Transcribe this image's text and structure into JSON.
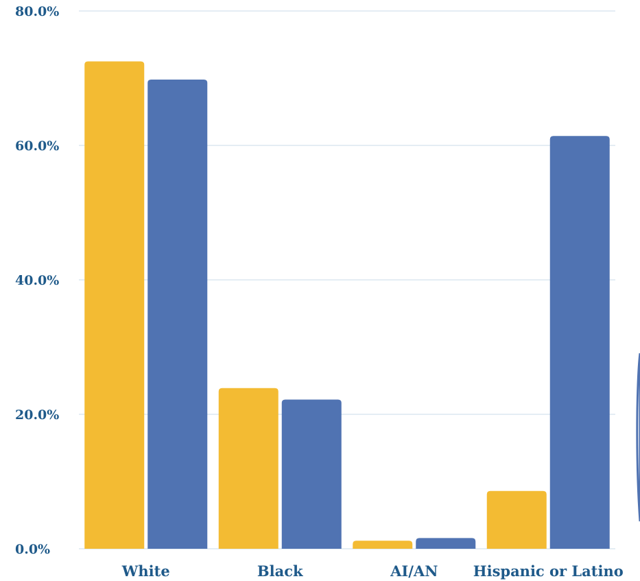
{
  "chart_data": {
    "type": "bar",
    "categories": [
      "White",
      "Black",
      "AI/AN",
      "Hispanic or Latino"
    ],
    "series": [
      {
        "color": "#f3bb33",
        "values": [
          72.5,
          23.9,
          1.2,
          8.6
        ]
      },
      {
        "color": "#5073b2",
        "values": [
          69.8,
          22.2,
          1.6,
          61.4
        ]
      }
    ],
    "y_ticks": [
      "0.0%",
      "20.0%",
      "40.0%",
      "60.0%",
      "80.0%"
    ],
    "y_tick_values": [
      0,
      20,
      40,
      60,
      80
    ],
    "ylim": [
      0,
      80
    ],
    "grid": true,
    "legend": "none",
    "title": "",
    "xlabel": "",
    "ylabel": ""
  }
}
